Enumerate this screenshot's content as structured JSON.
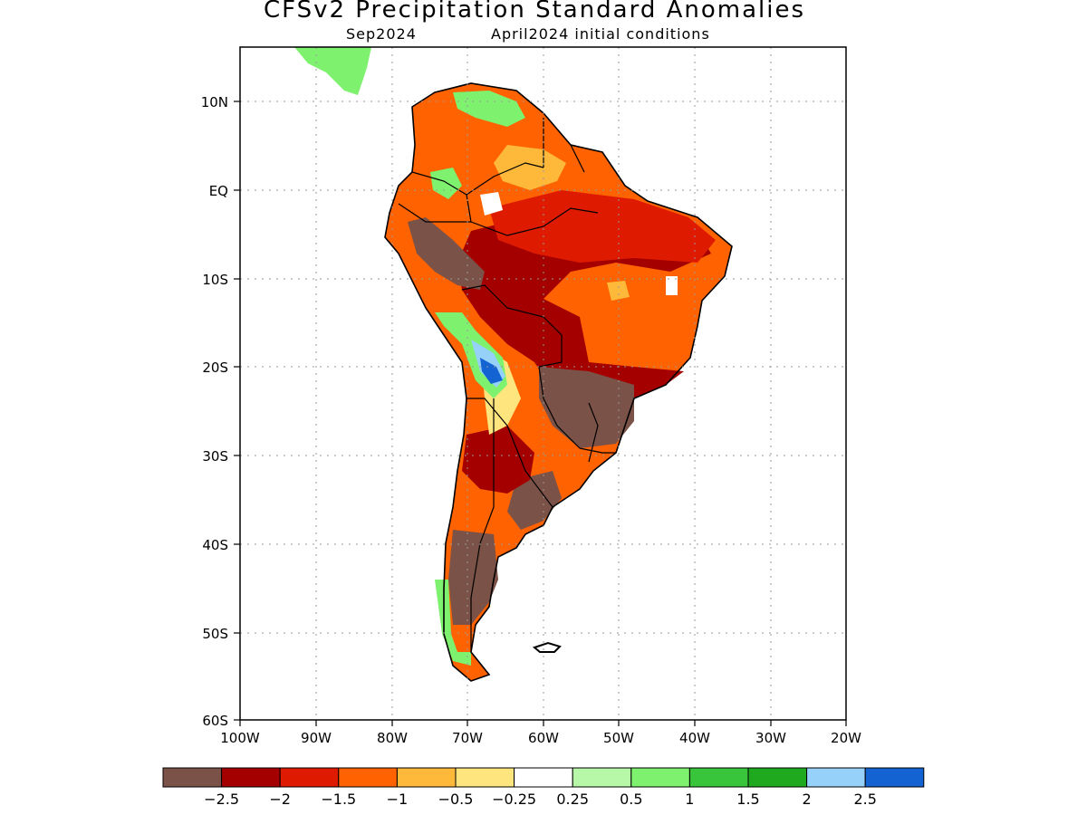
{
  "title": "CFSv2 Precipitation Standard Anomalies",
  "subtitle_month": "Sep2024",
  "subtitle_init": "April2024 initial conditions",
  "lat_labels": [
    "10N",
    "EQ",
    "10S",
    "20S",
    "30S",
    "40S",
    "50S",
    "60S"
  ],
  "lon_labels": [
    "100W",
    "90W",
    "80W",
    "70W",
    "60W",
    "50W",
    "40W",
    "30W",
    "20W"
  ],
  "colorbar": {
    "colors": [
      "#7b5247",
      "#a40000",
      "#de1b00",
      "#ff6200",
      "#ffb93a",
      "#ffe57e",
      "#ffffff",
      "#b6f8a8",
      "#7ef26e",
      "#39c53b",
      "#1ea91e",
      "#96d1fa",
      "#1463d2"
    ],
    "labels": [
      "−2.5",
      "−2",
      "−1.5",
      "−1",
      "−0.5",
      "−0.25",
      "0.25",
      "0.5",
      "1",
      "1.5",
      "2",
      "2.5"
    ]
  },
  "map_data": {
    "type": "gridded-anomaly-map",
    "region": "South America",
    "lon_range": [
      -100,
      -20
    ],
    "lat_range": [
      -60,
      16
    ],
    "grid": "dotted",
    "legend_position": "bottom"
  }
}
